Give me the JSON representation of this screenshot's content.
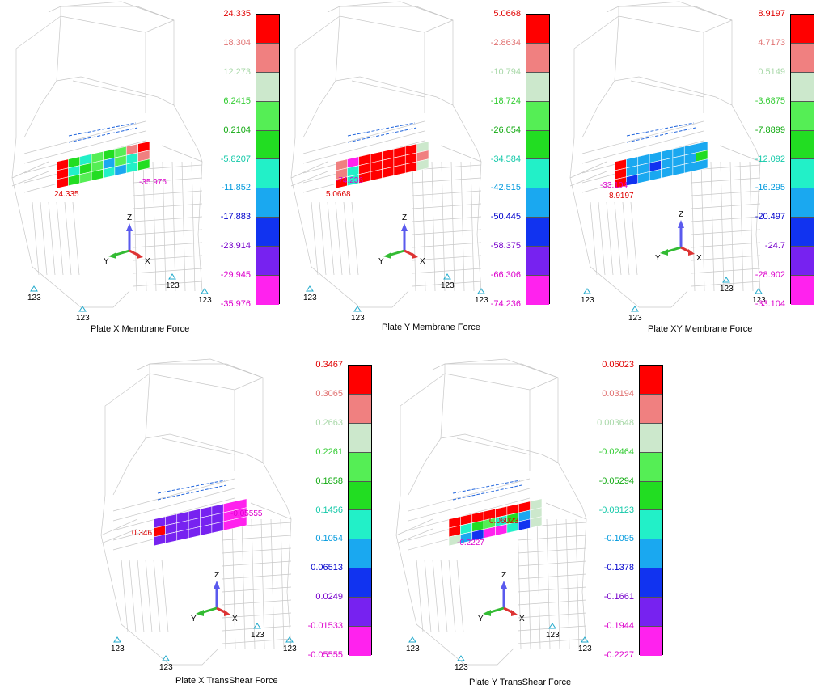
{
  "colors": {
    "red": "#ff0000",
    "salmon": "#f08080",
    "pale": "#cce8cc",
    "lightgreen": "#55ee55",
    "green": "#22dd22",
    "teal": "#22f0c8",
    "sky": "#1aa8f0",
    "blue": "#1133f0",
    "violet": "#7722f0",
    "magenta": "#ff22ee"
  },
  "legend_colors": [
    "#ff0000",
    "#f08080",
    "#cce8cc",
    "#55ee55",
    "#22dd22",
    "#22f0c8",
    "#1aa8f0",
    "#1133f0",
    "#7722f0",
    "#ff22ee"
  ],
  "label_colors": [
    "#e00000",
    "#e07070",
    "#a8d8a8",
    "#33cc33",
    "#11aa11",
    "#11c8a8",
    "#0099dd",
    "#0000cc",
    "#7700cc",
    "#dd00cc"
  ],
  "axis_labels": {
    "z": "Z",
    "y": "Y",
    "x": "X"
  },
  "support_label": "123",
  "panels": [
    {
      "caption": "Plate X Membrane Force",
      "legend": [
        "24.335",
        "18.304",
        "12.273",
        "6.2415",
        "0.2104",
        "-5.8207",
        "-11.852",
        "-17.883",
        "-23.914",
        "-29.945",
        "-35.976"
      ],
      "max_label": "24.335",
      "min_label": "-35.976"
    },
    {
      "caption": "Plate Y Membrane Force",
      "legend": [
        "5.0668",
        "-2.8634",
        "-10.794",
        "-18.724",
        "-26.654",
        "-34.584",
        "-42.515",
        "-50.445",
        "-58.375",
        "-66.306",
        "-74.236"
      ],
      "max_label": "5.0668",
      "min_label": "-74.236"
    },
    {
      "caption": "Plate XY Membrane Force",
      "legend": [
        "8.9197",
        "4.7173",
        "0.5149",
        "-3.6875",
        "-7.8899",
        "-12.092",
        "-16.295",
        "-20.497",
        "-24.7",
        "-28.902",
        "-33.104"
      ],
      "max_label": "8.9197",
      "min_label": "-33.104"
    },
    {
      "caption": "Plate X TransShear Force",
      "legend": [
        "0.3467",
        "0.3065",
        "0.2663",
        "0.2261",
        "0.1858",
        "0.1456",
        "0.1054",
        "0.06513",
        "0.0249",
        "-0.01533",
        "-0.05555"
      ],
      "max_label": "0.3467",
      "min_label": "-0.05555"
    },
    {
      "caption": "Plate Y TransShear Force",
      "legend": [
        "0.06023",
        "0.03194",
        "0.003648",
        "-0.02464",
        "-0.05294",
        "-0.08123",
        "-0.1095",
        "-0.1378",
        "-0.1661",
        "-0.1944",
        "-0.2227"
      ],
      "max_label": "0.06023",
      "min_label": "-0.2227"
    }
  ]
}
